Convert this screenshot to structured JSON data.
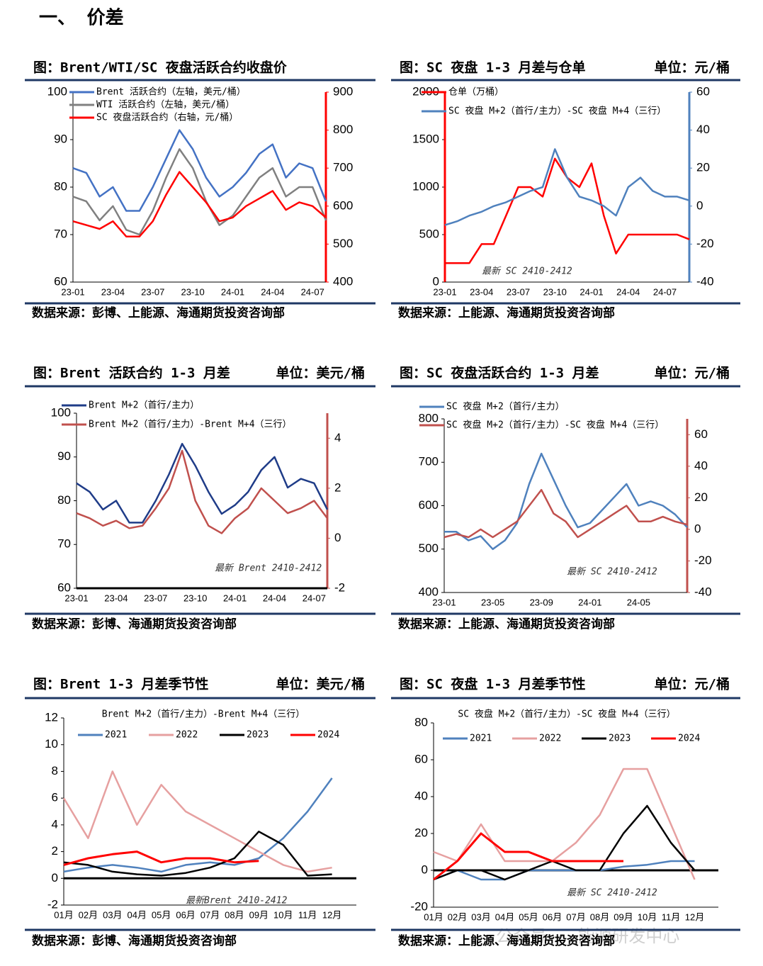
{
  "heading": "一、 价差",
  "watermark": "公众号 · 能源研发中心",
  "chart_data": [
    {
      "type": "line",
      "title": "图：Brent/WTI/SC 夜盘活跃合约收盘价",
      "source": "数据来源：彭博、上能源、海通期货投资咨询部",
      "categories": [
        "23-01",
        null,
        null,
        "23-04",
        null,
        null,
        "23-07",
        null,
        null,
        "23-10",
        null,
        null,
        "24-01",
        null,
        null,
        "24-04",
        null,
        null,
        "24-07",
        null
      ],
      "series": [
        {
          "name": "Brent 活跃合约（左轴，美元/桶）",
          "color": "#4472c4",
          "values": [
            84,
            83,
            78,
            80,
            75,
            75,
            80,
            86,
            92,
            88,
            82,
            78,
            80,
            83,
            87,
            89,
            82,
            85,
            84,
            77
          ]
        },
        {
          "name": "WTI 活跃合约（左轴，美元/桶）",
          "color": "#808080",
          "values": [
            78,
            77,
            73,
            76,
            71,
            70,
            75,
            82,
            88,
            84,
            77,
            72,
            74,
            78,
            82,
            84,
            78,
            80,
            80,
            73
          ]
        },
        {
          "name": "SC 夜盘活跃合约（右轴，元/桶）",
          "color": "#ff0000",
          "axis": "y2",
          "values": [
            560,
            550,
            540,
            560,
            520,
            520,
            560,
            630,
            690,
            650,
            610,
            560,
            570,
            600,
            620,
            640,
            590,
            610,
            600,
            570
          ]
        }
      ],
      "ylim": [
        60,
        100
      ],
      "yticks": [
        60,
        70,
        80,
        90,
        100
      ],
      "y2lim": [
        400,
        900
      ],
      "y2ticks": [
        400,
        500,
        600,
        700,
        800,
        900
      ],
      "legend": "upper left"
    },
    {
      "type": "line",
      "title": "图：SC 夜盘 1-3 月差与仓单",
      "unit": "单位：元/桶",
      "source": "数据来源：上能源、海通期货投资咨询部",
      "annotation": "最新 SC 2410-2412",
      "categories": [
        "23-01",
        null,
        null,
        "23-04",
        null,
        null,
        "23-07",
        null,
        null,
        "23-10",
        null,
        null,
        "24-01",
        null,
        null,
        "24-04",
        null,
        null,
        "24-07",
        null,
        null
      ],
      "series": [
        {
          "name": "仓单（万桶）",
          "color": "#ff0000",
          "values": [
            200,
            200,
            200,
            400,
            400,
            700,
            1000,
            1000,
            900,
            1300,
            1100,
            1000,
            1250,
            700,
            300,
            500,
            500,
            500,
            500,
            500,
            450
          ]
        },
        {
          "name": "SC 夜盘 M+2（首行/主力）-SC 夜盘 M+4（三行）",
          "color": "#4f81bd",
          "axis": "y2",
          "values": [
            -10,
            -8,
            -5,
            -3,
            0,
            2,
            5,
            8,
            10,
            30,
            15,
            5,
            3,
            0,
            -5,
            10,
            15,
            8,
            5,
            5,
            3
          ]
        }
      ],
      "ylim": [
        0,
        2000
      ],
      "yticks": [
        0,
        500,
        1000,
        1500,
        2000
      ],
      "y2lim": [
        -40,
        60
      ],
      "y2ticks": [
        -40,
        -20,
        0,
        20,
        40,
        60
      ],
      "legend": "upper left"
    },
    {
      "type": "line",
      "title": "图：Brent 活跃合约 1-3 月差",
      "unit": "单位：美元/桶",
      "source": "数据来源：彭博、海通期货投资咨询部",
      "annotation": "最新 Brent 2410-2412",
      "categories": [
        "23-01",
        null,
        null,
        "23-04",
        null,
        null,
        "23-07",
        null,
        null,
        "23-10",
        null,
        null,
        "24-01",
        null,
        null,
        "24-04",
        null,
        null,
        "24-07",
        null
      ],
      "series": [
        {
          "name": "Brent M+2（首行/主力）",
          "color": "#1f3c88",
          "values": [
            84,
            82,
            78,
            80,
            75,
            75,
            80,
            86,
            93,
            88,
            82,
            77,
            79,
            82,
            87,
            90,
            83,
            85,
            84,
            78
          ]
        },
        {
          "name": "Brent M+2（首行/主力）-Brent M+4（三行）",
          "color": "#c0504d",
          "axis": "y2",
          "values": [
            1.0,
            0.8,
            0.5,
            0.7,
            0.4,
            0.5,
            1.2,
            2.0,
            3.5,
            1.5,
            0.5,
            0.2,
            0.8,
            1.2,
            2.0,
            1.5,
            1.0,
            1.2,
            1.5,
            0.8
          ]
        }
      ],
      "ylim": [
        60,
        100
      ],
      "yticks": [
        60,
        70,
        80,
        90,
        100
      ],
      "y2lim": [
        -2,
        5
      ],
      "y2ticks": [
        -2,
        0,
        2,
        4
      ],
      "legend": "upper left"
    },
    {
      "type": "line",
      "title": "图：SC 夜盘活跃合约 1-3 月差",
      "unit": "单位：元/桶",
      "source": "数据来源：上能源、海通期货投资咨询部",
      "annotation": "最新 SC 2410-2412",
      "categories": [
        "23-01",
        null,
        null,
        null,
        "23-05",
        null,
        null,
        null,
        "23-09",
        null,
        null,
        null,
        "24-01",
        null,
        null,
        null,
        "24-05",
        null,
        null,
        null,
        null
      ],
      "series": [
        {
          "name": "SC 夜盘 M+2（首行/主力）",
          "color": "#4f81bd",
          "values": [
            540,
            540,
            520,
            530,
            500,
            520,
            560,
            650,
            720,
            660,
            600,
            550,
            560,
            590,
            620,
            650,
            600,
            610,
            600,
            580,
            550
          ]
        },
        {
          "name": "SC 夜盘 M+2（首行/主力）-SC 夜盘 M+4（三行）",
          "color": "#c0504d",
          "axis": "y2",
          "values": [
            -5,
            -3,
            -5,
            0,
            -5,
            0,
            5,
            15,
            25,
            10,
            5,
            -5,
            0,
            5,
            10,
            15,
            5,
            5,
            8,
            5,
            3
          ]
        }
      ],
      "ylim": [
        400,
        800
      ],
      "yticks": [
        400,
        500,
        600,
        700,
        800
      ],
      "y2lim": [
        -40,
        70
      ],
      "y2ticks": [
        -40,
        -20,
        0,
        20,
        40,
        60
      ],
      "legend": "upper left"
    },
    {
      "type": "season",
      "title": "图：Brent 1-3 月差季节性",
      "unit": "单位：美元/桶",
      "source": "数据来源：彭博、海通期货投资咨询部",
      "subtitle": "Brent M+2（首行/主力）-Brent M+4（三行）",
      "annotation": "最新Brent 2410-2412",
      "categories": [
        "01月",
        "02月",
        "03月",
        "04月",
        "05月",
        "06月",
        "07月",
        "08月",
        "09月",
        "10月",
        "11月",
        "12月"
      ],
      "series": [
        {
          "name": "2021",
          "color": "#4f81bd",
          "values": [
            0.5,
            0.8,
            1.0,
            0.8,
            0.5,
            1.0,
            1.2,
            1.0,
            1.5,
            3.0,
            5.0,
            7.5
          ]
        },
        {
          "name": "2022",
          "color": "#e6a0a0",
          "values": [
            6,
            3,
            8,
            4,
            7,
            5,
            4,
            3,
            2,
            1,
            0.5,
            0.8
          ]
        },
        {
          "name": "2023",
          "color": "#000000",
          "values": [
            1.2,
            1.0,
            0.5,
            0.3,
            0.2,
            0.4,
            0.8,
            1.5,
            3.5,
            2.5,
            0.2,
            0.3
          ]
        },
        {
          "name": "2024",
          "color": "#ff0000",
          "values": [
            1.0,
            1.5,
            1.8,
            2.0,
            1.2,
            1.5,
            1.5,
            1.2,
            1.3,
            null,
            null,
            null
          ]
        }
      ],
      "ylim": [
        -2,
        12
      ],
      "yticks": [
        -2,
        0,
        2,
        4,
        6,
        8,
        10,
        12
      ],
      "legend": "upper center"
    },
    {
      "type": "season",
      "title": "图：SC 夜盘 1-3 月差季节性",
      "unit": "单位：元/桶",
      "source": "数据来源：上能源、海通期货投资咨询部",
      "subtitle": "SC 夜盘 M+2（首行/主力）-SC 夜盘 M+4（三行）",
      "annotation": "最新 SC 2410-2412",
      "categories": [
        "01月",
        "02月",
        "03月",
        "04月",
        "05月",
        "06月",
        "07月",
        "08月",
        "09月",
        "10月",
        "11月",
        "12月"
      ],
      "series": [
        {
          "name": "2021",
          "color": "#4f81bd",
          "values": [
            -5,
            0,
            -5,
            -5,
            0,
            0,
            0,
            0,
            2,
            3,
            5,
            5
          ]
        },
        {
          "name": "2022",
          "color": "#e6a0a0",
          "values": [
            10,
            5,
            25,
            5,
            5,
            5,
            15,
            30,
            55,
            55,
            25,
            -5
          ]
        },
        {
          "name": "2023",
          "color": "#000000",
          "values": [
            -5,
            0,
            0,
            -5,
            0,
            5,
            0,
            0,
            20,
            35,
            15,
            0
          ]
        },
        {
          "name": "2024",
          "color": "#ff0000",
          "values": [
            -5,
            5,
            20,
            10,
            10,
            5,
            5,
            5,
            5,
            null,
            null,
            null
          ]
        }
      ],
      "ylim": [
        -20,
        80
      ],
      "yticks": [
        -20,
        0,
        20,
        40,
        60,
        80
      ],
      "legend": "upper center"
    }
  ]
}
